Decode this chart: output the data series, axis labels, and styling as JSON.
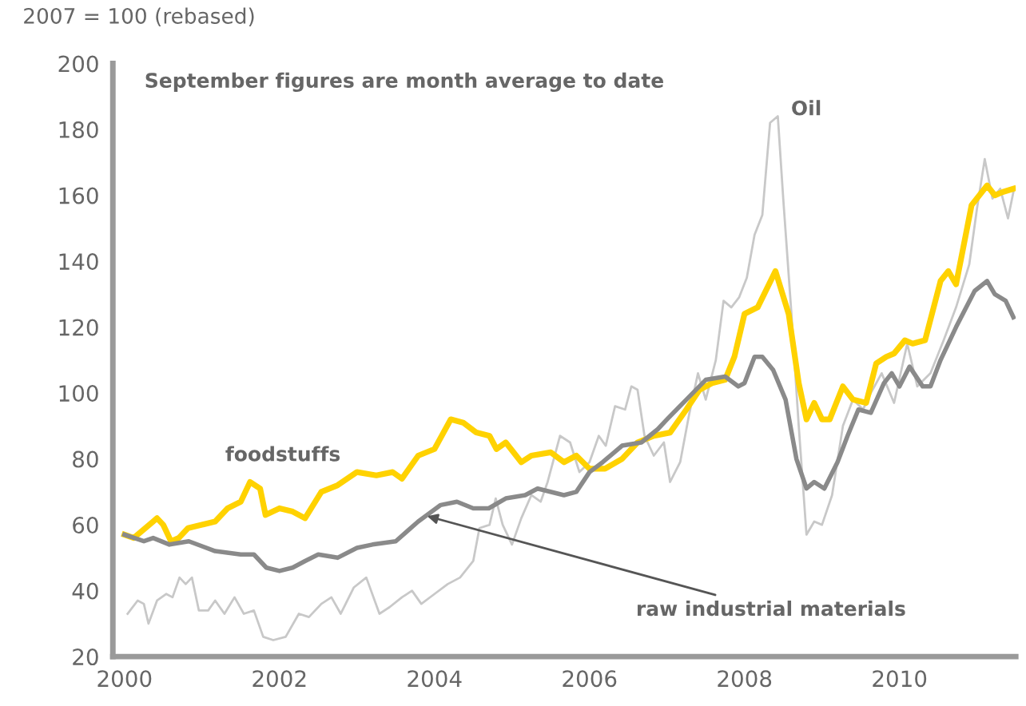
{
  "chart_data": {
    "type": "line",
    "ylabel": "2007 = 100 (rebased)",
    "annotations": [
      "September figures are month average to date"
    ],
    "xlim": [
      1999.85,
      2011.5
    ],
    "xticks": [
      2000,
      2002,
      2004,
      2006,
      2008,
      2010
    ],
    "ylim": [
      20,
      200
    ],
    "yticks": [
      20,
      40,
      60,
      80,
      100,
      120,
      140,
      160,
      180,
      200
    ],
    "grid": false,
    "legend": false,
    "marker": "none",
    "line_style": "solid",
    "series": [
      {
        "name": "Oil",
        "color": "#c8c8c8",
        "x": [
          2000.04,
          2000.17,
          2000.25,
          2000.31,
          2000.42,
          2000.54,
          2000.62,
          2000.71,
          2000.79,
          2000.87,
          2000.96,
          2001.08,
          2001.17,
          2001.29,
          2001.42,
          2001.54,
          2001.67,
          2001.79,
          2001.92,
          2002.08,
          2002.25,
          2002.38,
          2002.54,
          2002.67,
          2002.79,
          2002.96,
          2003.12,
          2003.29,
          2003.42,
          2003.58,
          2003.71,
          2003.83,
          2004.0,
          2004.17,
          2004.33,
          2004.5,
          2004.58,
          2004.71,
          2004.79,
          2004.88,
          2005.0,
          2005.12,
          2005.25,
          2005.37,
          2005.46,
          2005.62,
          2005.75,
          2005.87,
          2006.0,
          2006.12,
          2006.21,
          2006.33,
          2006.46,
          2006.54,
          2006.62,
          2006.71,
          2006.83,
          2006.96,
          2007.04,
          2007.17,
          2007.29,
          2007.4,
          2007.5,
          2007.63,
          2007.73,
          2007.83,
          2007.93,
          2008.03,
          2008.13,
          2008.23,
          2008.33,
          2008.43,
          2008.5,
          2008.6,
          2008.7,
          2008.8,
          2008.9,
          2009.0,
          2009.13,
          2009.27,
          2009.4,
          2009.53,
          2009.63,
          2009.77,
          2009.93,
          2010.1,
          2010.23,
          2010.4,
          2010.57,
          2010.73,
          2010.9,
          2011.0,
          2011.1,
          2011.2,
          2011.3,
          2011.4,
          2011.47
        ],
        "values": [
          33,
          37,
          36,
          30,
          37,
          39,
          38,
          44,
          42,
          44,
          34,
          34,
          37,
          33,
          38,
          33,
          34,
          26,
          25,
          26,
          33,
          32,
          36,
          38,
          33,
          41,
          44,
          33,
          35,
          38,
          40,
          36,
          39,
          42,
          44,
          49,
          59,
          60,
          68,
          60,
          54,
          62,
          69,
          67,
          73,
          87,
          85,
          76,
          79,
          87,
          84,
          96,
          95,
          102,
          101,
          87,
          81,
          85,
          73,
          79,
          94,
          106,
          98,
          110,
          128,
          126,
          129,
          135,
          148,
          154,
          182,
          184,
          159,
          126,
          90,
          57,
          61,
          60,
          69,
          90,
          98,
          95,
          100,
          106,
          97,
          115,
          102,
          106,
          116,
          126,
          139,
          156,
          171,
          159,
          162,
          153,
          161
        ]
      },
      {
        "name": "foodstuffs",
        "color": "#ffd200",
        "x": [
          2000.0,
          2000.12,
          2000.37,
          2000.42,
          2000.5,
          2000.6,
          2000.7,
          2000.82,
          2001.0,
          2001.17,
          2001.33,
          2001.5,
          2001.62,
          2001.75,
          2001.82,
          2002.0,
          2002.17,
          2002.33,
          2002.54,
          2002.75,
          2003.0,
          2003.25,
          2003.46,
          2003.58,
          2003.79,
          2004.0,
          2004.21,
          2004.37,
          2004.54,
          2004.71,
          2004.8,
          2004.92,
          2005.12,
          2005.25,
          2005.5,
          2005.67,
          2005.83,
          2006.0,
          2006.2,
          2006.42,
          2006.62,
          2006.83,
          2007.04,
          2007.25,
          2007.42,
          2007.58,
          2007.75,
          2007.87,
          2008.0,
          2008.17,
          2008.4,
          2008.57,
          2008.7,
          2008.8,
          2008.9,
          2009.0,
          2009.1,
          2009.27,
          2009.4,
          2009.57,
          2009.7,
          2009.83,
          2009.93,
          2010.07,
          2010.17,
          2010.33,
          2010.53,
          2010.63,
          2010.73,
          2010.93,
          2011.13,
          2011.23,
          2011.33,
          2011.47
        ],
        "values": [
          57,
          56,
          61,
          62,
          60,
          55,
          56,
          59,
          60,
          61,
          65,
          67,
          73,
          71,
          63,
          65,
          64,
          62,
          70,
          72,
          76,
          75,
          76,
          74,
          81,
          83,
          92,
          91,
          88,
          87,
          83,
          85,
          79,
          81,
          82,
          79,
          81,
          77,
          77,
          80,
          85,
          87,
          88,
          95,
          101,
          103,
          104,
          111,
          124,
          126,
          137,
          124,
          103,
          92,
          97,
          92,
          92,
          102,
          98,
          97,
          109,
          111,
          112,
          116,
          115,
          116,
          134,
          137,
          133,
          157,
          163,
          160,
          161,
          162
        ]
      },
      {
        "name": "raw industrial materials",
        "color": "#8a8a8a",
        "x": [
          2000.0,
          2000.25,
          2000.37,
          2000.58,
          2000.83,
          2001.17,
          2001.5,
          2001.67,
          2001.83,
          2002.0,
          2002.17,
          2002.33,
          2002.5,
          2002.75,
          2003.0,
          2003.2,
          2003.5,
          2003.79,
          2004.08,
          2004.29,
          2004.5,
          2004.7,
          2004.92,
          2005.17,
          2005.33,
          2005.67,
          2005.83,
          2006.0,
          2006.17,
          2006.42,
          2006.67,
          2006.88,
          2007.0,
          2007.25,
          2007.5,
          2007.75,
          2007.92,
          2008.0,
          2008.13,
          2008.23,
          2008.37,
          2008.53,
          2008.67,
          2008.8,
          2008.9,
          2009.03,
          2009.2,
          2009.33,
          2009.47,
          2009.63,
          2009.8,
          2009.9,
          2010.0,
          2010.13,
          2010.3,
          2010.4,
          2010.53,
          2010.73,
          2010.97,
          2011.13,
          2011.23,
          2011.37,
          2011.47
        ],
        "values": [
          57,
          55,
          56,
          54,
          55,
          52,
          51,
          51,
          47,
          46,
          47,
          49,
          51,
          50,
          53,
          54,
          55,
          61,
          66,
          67,
          65,
          65,
          68,
          69,
          71,
          69,
          70,
          76,
          79,
          84,
          85,
          89,
          92,
          98,
          104,
          105,
          102,
          103,
          111,
          111,
          107,
          98,
          80,
          71,
          73,
          71,
          79,
          87,
          95,
          94,
          103,
          106,
          102,
          108,
          102,
          102,
          110,
          120,
          131,
          134,
          130,
          128,
          123
        ]
      }
    ]
  }
}
